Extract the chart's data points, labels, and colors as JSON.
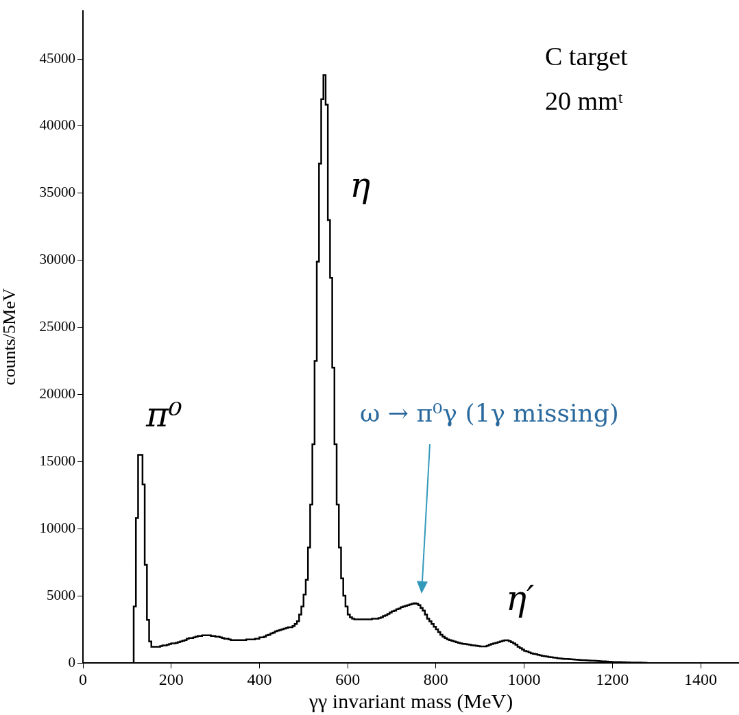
{
  "chart_data": {
    "type": "histogram",
    "xlabel": "γγ invariant mass (MeV)",
    "ylabel": "counts/5MeV",
    "bins": [
      115,
      120,
      125,
      130,
      135,
      140,
      145,
      150,
      155,
      160,
      165,
      170,
      175,
      180,
      185,
      190,
      195,
      200,
      205,
      210,
      215,
      220,
      225,
      230,
      235,
      240,
      245,
      250,
      255,
      260,
      265,
      270,
      275,
      280,
      285,
      290,
      295,
      300,
      305,
      310,
      315,
      320,
      325,
      330,
      335,
      340,
      345,
      350,
      355,
      360,
      365,
      370,
      375,
      380,
      385,
      390,
      395,
      400,
      405,
      410,
      415,
      420,
      425,
      430,
      435,
      440,
      445,
      450,
      455,
      460,
      465,
      470,
      475,
      480,
      485,
      490,
      495,
      500,
      505,
      510,
      515,
      520,
      525,
      530,
      535,
      540,
      545,
      550,
      555,
      560,
      565,
      570,
      575,
      580,
      585,
      590,
      595,
      600,
      605,
      610,
      615,
      620,
      625,
      630,
      635,
      640,
      645,
      650,
      655,
      660,
      665,
      670,
      675,
      680,
      685,
      690,
      695,
      700,
      705,
      710,
      715,
      720,
      725,
      730,
      735,
      740,
      745,
      750,
      755,
      760,
      765,
      770,
      775,
      780,
      785,
      790,
      795,
      800,
      805,
      810,
      815,
      820,
      825,
      830,
      835,
      840,
      845,
      850,
      855,
      860,
      865,
      870,
      875,
      880,
      885,
      890,
      895,
      900,
      905,
      910,
      915,
      920,
      925,
      930,
      935,
      940,
      945,
      950,
      955,
      960,
      965,
      970,
      975,
      980,
      985,
      990,
      995,
      1000,
      1005,
      1010,
      1015,
      1020,
      1025,
      1030,
      1035,
      1040,
      1045,
      1050,
      1055,
      1060,
      1065,
      1070,
      1075,
      1080,
      1085,
      1090,
      1095,
      1100,
      1105,
      1110,
      1115,
      1120,
      1125,
      1130,
      1135,
      1140,
      1145,
      1150,
      1155,
      1160,
      1165,
      1170,
      1175,
      1180,
      1185,
      1190,
      1195,
      1200,
      1205,
      1210,
      1215,
      1220,
      1225,
      1230,
      1235,
      1240,
      1245,
      1250,
      1255,
      1260,
      1265,
      1270,
      1275,
      1280
    ],
    "values": [
      1000,
      4200,
      10800,
      15500,
      15500,
      13300,
      7300,
      3200,
      1600,
      1200,
      1200,
      1200,
      1200,
      1250,
      1300,
      1300,
      1350,
      1400,
      1450,
      1450,
      1500,
      1550,
      1600,
      1650,
      1700,
      1800,
      1850,
      1850,
      1900,
      1950,
      2000,
      2000,
      2050,
      2050,
      2050,
      2050,
      2000,
      2000,
      1950,
      1950,
      1900,
      1850,
      1800,
      1800,
      1750,
      1700,
      1700,
      1700,
      1700,
      1700,
      1700,
      1700,
      1750,
      1750,
      1750,
      1750,
      1800,
      1800,
      1900,
      1900,
      1950,
      2050,
      2100,
      2200,
      2250,
      2350,
      2400,
      2450,
      2500,
      2550,
      2600,
      2650,
      2650,
      2750,
      2900,
      3100,
      3600,
      4200,
      5100,
      6200,
      8600,
      11800,
      16300,
      22500,
      29900,
      37200,
      42000,
      43800,
      41600,
      33000,
      28700,
      22000,
      16300,
      11800,
      8600,
      6300,
      5000,
      4200,
      3600,
      3400,
      3300,
      3250,
      3250,
      3250,
      3250,
      3250,
      3250,
      3250,
      3250,
      3300,
      3300,
      3300,
      3350,
      3400,
      3500,
      3550,
      3650,
      3750,
      3850,
      3900,
      4000,
      4050,
      4150,
      4200,
      4250,
      4300,
      4350,
      4400,
      4450,
      4400,
      4300,
      4100,
      3900,
      3600,
      3300,
      3100,
      2900,
      2700,
      2500,
      2300,
      2100,
      1950,
      1850,
      1750,
      1700,
      1650,
      1600,
      1550,
      1500,
      1450,
      1420,
      1400,
      1380,
      1350,
      1320,
      1300,
      1280,
      1250,
      1230,
      1220,
      1230,
      1280,
      1350,
      1400,
      1450,
      1500,
      1550,
      1600,
      1650,
      1680,
      1680,
      1620,
      1550,
      1450,
      1350,
      1200,
      1100,
      1000,
      900,
      850,
      780,
      720,
      680,
      650,
      600,
      560,
      520,
      500,
      470,
      440,
      420,
      400,
      380,
      350,
      330,
      310,
      300,
      290,
      280,
      270,
      260,
      240,
      230,
      220,
      210,
      200,
      190,
      180,
      170,
      160,
      150,
      140,
      130,
      120,
      110,
      100,
      90,
      80,
      70,
      70,
      60,
      60,
      50,
      50,
      40,
      40,
      30,
      30,
      20,
      20,
      20,
      10,
      10
    ],
    "color": "#000000",
    "xlim": [
      0,
      1487
    ],
    "xticks": [
      0,
      200,
      400,
      600,
      800,
      1000,
      1200,
      1400
    ],
    "ylim": [
      0,
      48600
    ],
    "yticks": [
      0,
      5000,
      10000,
      15000,
      20000,
      25000,
      30000,
      35000,
      40000,
      45000
    ],
    "grid": false,
    "annotations": [
      "C target",
      "20 mmᵗ",
      {
        "text": "π⁰",
        "x": 135,
        "y": 15500
      },
      {
        "text": "η",
        "x": 552,
        "y": 43800
      },
      "ω → π⁰γ (1γ missing)",
      {
        "text": "η′",
        "x": 965,
        "y": 1680
      }
    ]
  }
}
